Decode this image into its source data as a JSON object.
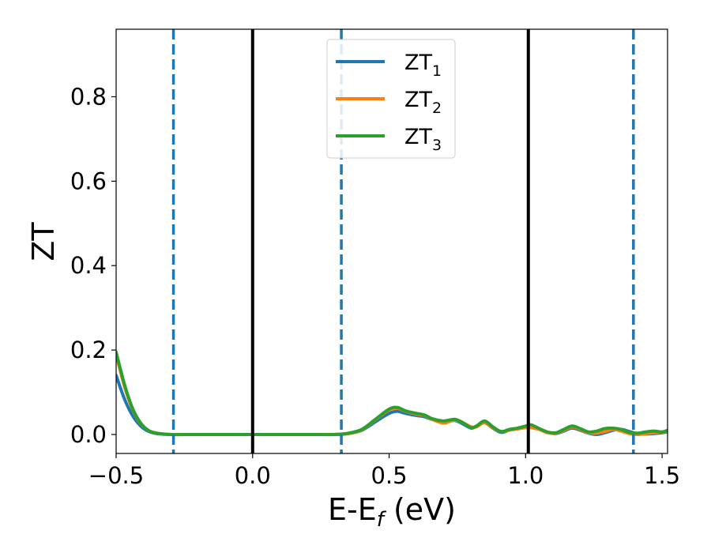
{
  "chart_data": {
    "type": "line",
    "xlabel": {
      "main": "E-E",
      "sub": "f",
      "unit": " (eV)"
    },
    "ylabel": "ZT",
    "xlim": [
      -0.5,
      1.52
    ],
    "ylim": [
      -0.045,
      0.96
    ],
    "xticks": [
      {
        "value": -0.5,
        "label": "−0.5"
      },
      {
        "value": 0.0,
        "label": "0.0"
      },
      {
        "value": 0.5,
        "label": "0.5"
      },
      {
        "value": 1.0,
        "label": "1.0"
      },
      {
        "value": 1.5,
        "label": "1.5"
      }
    ],
    "yticks": [
      {
        "value": 0.0,
        "label": "0.0"
      },
      {
        "value": 0.2,
        "label": "0.2"
      },
      {
        "value": 0.4,
        "label": "0.4"
      },
      {
        "value": 0.6,
        "label": "0.6"
      },
      {
        "value": 0.8,
        "label": "0.8"
      }
    ],
    "grid": false,
    "legend_position": "top-center",
    "vlines": [
      {
        "x": -0.29,
        "style": "dashed",
        "color": "#1f77b4"
      },
      {
        "x": 0.0,
        "style": "solid",
        "color": "#000000"
      },
      {
        "x": 0.325,
        "style": "dashed",
        "color": "#1f77b4"
      },
      {
        "x": 1.01,
        "style": "solid",
        "color": "#000000"
      },
      {
        "x": 1.395,
        "style": "dashed",
        "color": "#1f77b4"
      }
    ],
    "series": [
      {
        "name": "ZT",
        "sub": "1",
        "color": "#1f77b4",
        "x": [
          -0.5,
          -0.47,
          -0.44,
          -0.41,
          -0.38,
          -0.35,
          -0.3,
          -0.2,
          0.0,
          0.2,
          0.3,
          0.35,
          0.4,
          0.45,
          0.5,
          0.53,
          0.56,
          0.6,
          0.63,
          0.66,
          0.7,
          0.74,
          0.77,
          0.8,
          0.82,
          0.85,
          0.88,
          0.91,
          0.94,
          0.97,
          1.0,
          1.02,
          1.05,
          1.08,
          1.11,
          1.14,
          1.17,
          1.2,
          1.23,
          1.26,
          1.29,
          1.32,
          1.35,
          1.38,
          1.41,
          1.44,
          1.47,
          1.5,
          1.52
        ],
        "y": [
          0.14,
          0.085,
          0.045,
          0.02,
          0.007,
          0.002,
          0.0,
          0.0,
          0.0,
          0.0,
          0.0,
          0.002,
          0.01,
          0.03,
          0.05,
          0.055,
          0.05,
          0.045,
          0.042,
          0.035,
          0.03,
          0.033,
          0.025,
          0.015,
          0.02,
          0.028,
          0.015,
          0.005,
          0.01,
          0.014,
          0.018,
          0.02,
          0.012,
          0.005,
          0.002,
          0.008,
          0.015,
          0.01,
          0.003,
          0.0,
          0.004,
          0.01,
          0.012,
          0.007,
          0.002,
          0.001,
          0.002,
          0.004,
          0.006
        ]
      },
      {
        "name": "ZT",
        "sub": "2",
        "color": "#ff7f0e",
        "x": [
          -0.5,
          -0.47,
          -0.44,
          -0.41,
          -0.38,
          -0.35,
          -0.3,
          -0.2,
          0.0,
          0.2,
          0.3,
          0.35,
          0.4,
          0.45,
          0.5,
          0.53,
          0.56,
          0.6,
          0.63,
          0.66,
          0.7,
          0.74,
          0.77,
          0.8,
          0.82,
          0.85,
          0.88,
          0.91,
          0.94,
          0.97,
          1.0,
          1.02,
          1.05,
          1.08,
          1.11,
          1.14,
          1.17,
          1.2,
          1.23,
          1.26,
          1.29,
          1.32,
          1.35,
          1.38,
          1.41,
          1.44,
          1.47,
          1.5,
          1.52
        ],
        "y": [
          0.19,
          0.115,
          0.06,
          0.026,
          0.009,
          0.003,
          0.0,
          0.0,
          0.0,
          0.0,
          0.0,
          0.002,
          0.011,
          0.035,
          0.058,
          0.062,
          0.055,
          0.048,
          0.045,
          0.035,
          0.027,
          0.034,
          0.028,
          0.018,
          0.018,
          0.028,
          0.016,
          0.007,
          0.01,
          0.013,
          0.016,
          0.016,
          0.012,
          0.004,
          0.003,
          0.01,
          0.018,
          0.012,
          0.004,
          0.003,
          0.007,
          0.012,
          0.008,
          0.002,
          0.0,
          0.002,
          0.004,
          0.006,
          0.007
        ]
      },
      {
        "name": "ZT",
        "sub": "3",
        "color": "#2ca02c",
        "x": [
          -0.5,
          -0.47,
          -0.44,
          -0.41,
          -0.38,
          -0.35,
          -0.3,
          -0.2,
          0.0,
          0.2,
          0.3,
          0.35,
          0.4,
          0.45,
          0.5,
          0.53,
          0.56,
          0.6,
          0.63,
          0.66,
          0.7,
          0.74,
          0.77,
          0.8,
          0.82,
          0.85,
          0.88,
          0.91,
          0.94,
          0.97,
          1.0,
          1.02,
          1.05,
          1.08,
          1.11,
          1.14,
          1.17,
          1.2,
          1.23,
          1.26,
          1.29,
          1.32,
          1.35,
          1.38,
          1.41,
          1.44,
          1.47,
          1.5,
          1.52
        ],
        "y": [
          0.195,
          0.12,
          0.062,
          0.027,
          0.009,
          0.003,
          0.0,
          0.0,
          0.0,
          0.0,
          0.0,
          0.003,
          0.012,
          0.036,
          0.06,
          0.064,
          0.056,
          0.05,
          0.046,
          0.037,
          0.032,
          0.036,
          0.028,
          0.016,
          0.02,
          0.032,
          0.018,
          0.007,
          0.012,
          0.015,
          0.02,
          0.023,
          0.014,
          0.006,
          0.004,
          0.012,
          0.02,
          0.014,
          0.006,
          0.008,
          0.014,
          0.015,
          0.012,
          0.005,
          0.003,
          0.006,
          0.008,
          0.006,
          0.01
        ]
      }
    ]
  }
}
